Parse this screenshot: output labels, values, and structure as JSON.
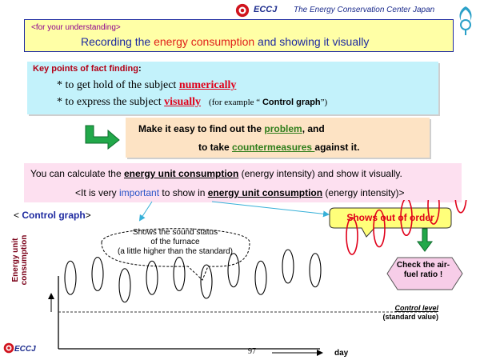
{
  "header": {
    "brand": "ECCJ",
    "organization": "The Energy Conservation Center Japan"
  },
  "intro": {
    "tag": "<for your understanding>",
    "recording_word": "Recording",
    "text_1": " the ",
    "energy_consumption": "energy consumption",
    "text_2": " and showing it visually"
  },
  "key_points": {
    "title": "Key points of fact finding",
    "colon": ":",
    "line_1_prefix": "* to get hold of the subject ",
    "line_1_emphasis": "numerically",
    "line_2_prefix": "* to express the subject ",
    "line_2_emphasis": "visually",
    "example_prefix": "(for example “ ",
    "example_bold": "Control graph",
    "example_suffix": "”)"
  },
  "action": {
    "line_1_prefix": "Make it easy to find out the ",
    "line_1_link": "problem",
    "line_1_suffix": ", and",
    "line_2_prefix": "to take ",
    "line_2_link": "countermeasures ",
    "line_2_suffix": "against it."
  },
  "calculation": {
    "line_1_prefix": "You can calculate the ",
    "line_1_bold": "energy unit consumption",
    "line_1_suffix": " (energy intensity) and show it visually.",
    "line_2_prefix": "<It is very ",
    "line_2_blue": "important",
    "line_2_mid": " to show in ",
    "line_2_bold": "energy unit consumption",
    "line_2_suffix": " (energy intensity)>"
  },
  "control_graph": {
    "title_open": "< ",
    "title": "Control graph",
    "title_close": ">",
    "ylabel_1": "Energy unit",
    "ylabel_2": "consumption",
    "xlabel": "day",
    "control_level": "Control level",
    "standard_value": "(standard value)",
    "callout_lines": [
      "Shows the sound status",
      "of the furnace",
      "(a little higher than the standard)"
    ],
    "out_of_order": "Shows out of order",
    "check": "Check the air-fuel ratio !",
    "colors": {
      "normal": "#000000",
      "abnormal": "#e0001a",
      "check_fill": "#f7cde8"
    }
  },
  "chart_data": {
    "type": "scatter",
    "xlabel": "day",
    "ylabel": "Energy unit consumption",
    "reference_line": "Control level (standard value)",
    "series": [
      {
        "status": "normal",
        "x": [
          1,
          2,
          3,
          4,
          5,
          6,
          7,
          8,
          9,
          10
        ],
        "y": [
          0.45,
          0.5,
          0.35,
          0.45,
          0.5,
          0.4,
          0.55,
          0.45,
          0.6,
          0.55
        ]
      },
      {
        "status": "abnormal",
        "x": [
          11,
          12,
          13,
          14,
          15
        ],
        "y": [
          1.0,
          1.1,
          1.25,
          1.4,
          1.55
        ]
      }
    ]
  },
  "footer": {
    "page_number": "97",
    "brand": "ECCJ"
  }
}
